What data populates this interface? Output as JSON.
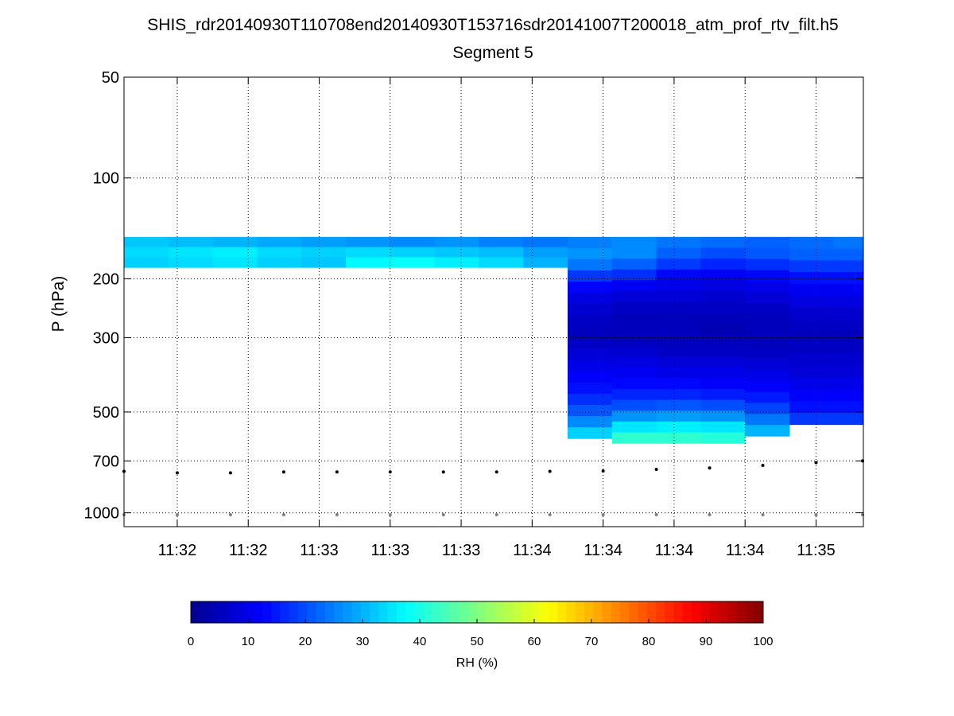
{
  "title": "SHIS_rdr20140930T110708end20140930T153716sdr20141007T200018_atm_prof_rtv_filt.h5",
  "subtitle": "Segment 5",
  "colors": {
    "jet": [
      "#00008f",
      "#0000ff",
      "#0080ff",
      "#00ffff",
      "#80ff80",
      "#ffff00",
      "#ff8000",
      "#ff0000",
      "#800000"
    ],
    "surface_marker": "#000000",
    "ground_marker": "#808080",
    "grid": "#000000"
  },
  "chart_data": {
    "type": "heatmap",
    "title": "SHIS_rdr20140930T110708end20140930T153716sdr20141007T200018_atm_prof_rtv_filt.h5",
    "subtitle": "Segment 5",
    "ylabel": "P (hPa)",
    "xlabel": "",
    "y_scale": "log",
    "y_reversed": true,
    "ylim": [
      50,
      1100
    ],
    "xlim": [
      "11:31:25",
      "11:35:35"
    ],
    "grid": true,
    "y_ticks": [
      50,
      100,
      200,
      300,
      500,
      700,
      1000
    ],
    "x_tick_times": [
      "11:31:43",
      "11:32:07",
      "11:32:31",
      "11:32:55",
      "11:33:19",
      "11:33:43",
      "11:34:07",
      "11:34:31",
      "11:34:55",
      "11:35:19"
    ],
    "x_tick_labels": [
      "11:32",
      "11:32",
      "11:33",
      "11:33",
      "11:33",
      "11:34",
      "11:34",
      "11:34",
      "11:34",
      "11:35"
    ],
    "columns": [
      {
        "time": "11:31:25",
        "top": 150,
        "bottom": 185,
        "rh": [
          32,
          34,
          33
        ]
      },
      {
        "time": "11:31:40",
        "top": 150,
        "bottom": 185,
        "rh": [
          31,
          35,
          34
        ]
      },
      {
        "time": "11:31:55",
        "top": 150,
        "bottom": 185,
        "rh": [
          30,
          36,
          35
        ]
      },
      {
        "time": "11:32:10",
        "top": 150,
        "bottom": 185,
        "rh": [
          29,
          34,
          33
        ]
      },
      {
        "time": "11:32:25",
        "top": 150,
        "bottom": 185,
        "rh": [
          28,
          33,
          32
        ]
      },
      {
        "time": "11:32:40",
        "top": 150,
        "bottom": 185,
        "rh": [
          27,
          34,
          37
        ]
      },
      {
        "time": "11:32:55",
        "top": 150,
        "bottom": 185,
        "rh": [
          26,
          33,
          38
        ]
      },
      {
        "time": "11:33:10",
        "top": 150,
        "bottom": 185,
        "rh": [
          27,
          32,
          36
        ]
      },
      {
        "time": "11:33:25",
        "top": 150,
        "bottom": 185,
        "rh": [
          25,
          31,
          34
        ]
      },
      {
        "time": "11:33:40",
        "top": 150,
        "bottom": 185,
        "rh": [
          24,
          28,
          30
        ]
      },
      {
        "time": "11:33:55",
        "top": 150,
        "bottom": 600,
        "rh": [
          25,
          27,
          24,
          18,
          12,
          9,
          7,
          6,
          5,
          6,
          8,
          10,
          12,
          14,
          17,
          21,
          26,
          33
        ]
      },
      {
        "time": "11:34:10",
        "top": 150,
        "bottom": 620,
        "rh": [
          26,
          26,
          22,
          17,
          11,
          8,
          6,
          5,
          5,
          5,
          7,
          9,
          11,
          13,
          16,
          20,
          27,
          35,
          42
        ]
      },
      {
        "time": "11:34:25",
        "top": 150,
        "bottom": 620,
        "rh": [
          24,
          22,
          18,
          13,
          10,
          8,
          6,
          5,
          5,
          5,
          6,
          8,
          10,
          13,
          16,
          21,
          28,
          36,
          42
        ]
      },
      {
        "time": "11:34:40",
        "top": 150,
        "bottom": 620,
        "rh": [
          23,
          20,
          16,
          12,
          9,
          7,
          6,
          5,
          4,
          5,
          6,
          8,
          10,
          12,
          15,
          20,
          27,
          35,
          41
        ]
      },
      {
        "time": "11:34:55",
        "top": 150,
        "bottom": 590,
        "rh": [
          22,
          21,
          17,
          13,
          10,
          8,
          6,
          5,
          5,
          5,
          6,
          8,
          10,
          12,
          15,
          19,
          24,
          30
        ]
      },
      {
        "time": "11:35:10",
        "top": 150,
        "bottom": 545,
        "rh": [
          23,
          22,
          18,
          14,
          11,
          9,
          7,
          6,
          5,
          6,
          7,
          8,
          10,
          12,
          14,
          18
        ]
      },
      {
        "time": "11:35:25",
        "top": 150,
        "bottom": 545,
        "rh": [
          24,
          22,
          18,
          14,
          11,
          9,
          7,
          6,
          5,
          6,
          7,
          8,
          10,
          12,
          14,
          18
        ]
      }
    ],
    "surface_pressure": {
      "times": [
        "11:31:25",
        "11:31:43",
        "11:32:01",
        "11:32:19",
        "11:32:37",
        "11:32:55",
        "11:33:13",
        "11:33:31",
        "11:33:49",
        "11:34:07",
        "11:34:25",
        "11:34:43",
        "11:35:01",
        "11:35:19",
        "11:35:35"
      ],
      "values": [
        752,
        760,
        760,
        755,
        755,
        755,
        755,
        755,
        752,
        750,
        742,
        735,
        722,
        708,
        700
      ]
    },
    "ground_pressure": {
      "times": [
        "11:31:25",
        "11:31:43",
        "11:32:01",
        "11:32:19",
        "11:32:37",
        "11:32:55",
        "11:33:13",
        "11:33:31",
        "11:33:49",
        "11:34:07",
        "11:34:25",
        "11:34:43",
        "11:35:01",
        "11:35:19",
        "11:35:35"
      ],
      "values": [
        1013,
        1013,
        1013,
        1013,
        1013,
        1013,
        1013,
        1013,
        1013,
        1013,
        1013,
        1013,
        1013,
        1013,
        1013
      ]
    },
    "colorbar": {
      "label": "RH (%)",
      "ticks": [
        0,
        10,
        20,
        30,
        40,
        50,
        60,
        70,
        80,
        90,
        100
      ],
      "range": [
        0,
        100
      ],
      "colormap": "jet"
    }
  }
}
